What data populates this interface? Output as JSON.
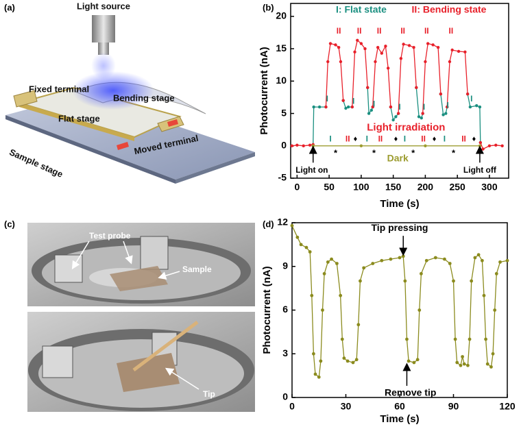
{
  "panel_labels": [
    "(a)",
    "(b)",
    "(c)",
    "(d)"
  ],
  "schematic": {
    "labels": [
      "Light source",
      "Fixed terminal",
      "Bending stage",
      "Flat stage",
      "Sample stage",
      "Moved terminal"
    ]
  },
  "photos": {
    "labels": [
      "Test probe",
      "Sample",
      "Tip"
    ]
  },
  "chart_data": [
    {
      "type": "line",
      "x_label": "Time (s)",
      "y_label": "Photocurrent (nA)",
      "xlim": [
        -10,
        330
      ],
      "xticks": [
        0,
        50,
        100,
        150,
        200,
        250,
        300
      ],
      "ylim": [
        -5,
        22
      ],
      "yticks": [
        -5,
        0,
        5,
        10,
        15,
        20
      ],
      "series": [
        {
          "name": "I: Flat state",
          "color": "#1a8f80",
          "x": [
            25,
            26,
            35,
            45,
            58,
            72,
            76,
            80,
            86,
            98,
            110,
            112,
            116,
            118,
            132,
            146,
            150,
            154,
            158,
            172,
            186,
            190,
            194,
            196,
            210,
            224,
            228,
            232,
            234,
            250,
            266,
            270,
            280,
            285,
            286
          ],
          "values": [
            0,
            6,
            6,
            6,
            null,
            7,
            5.8,
            6,
            6,
            null,
            9,
            5,
            5.5,
            6,
            null,
            6,
            4,
            4.5,
            5,
            null,
            9,
            4.5,
            4.3,
            5,
            null,
            8,
            4.8,
            5,
            6,
            null,
            8,
            6,
            6.2,
            6,
            0.5
          ]
        },
        {
          "name": "II: Bending state",
          "color": "#e8202a",
          "x": [
            -8,
            0,
            10,
            20,
            25,
            35,
            45,
            48,
            52,
            60,
            65,
            68,
            72,
            79,
            86,
            90,
            94,
            100,
            106,
            110,
            114,
            118,
            122,
            126,
            132,
            138,
            142,
            146,
            152,
            158,
            162,
            166,
            175,
            182,
            186,
            191,
            196,
            200,
            204,
            212,
            220,
            224,
            229,
            234,
            238,
            242,
            252,
            262,
            266,
            276,
            286,
            290,
            300,
            310,
            320
          ],
          "values": [
            0,
            0.1,
            0,
            0.1,
            0.2,
            null,
            6,
            13,
            15.8,
            15.6,
            15.2,
            13,
            7,
            null,
            6,
            14.5,
            16.3,
            15.8,
            15,
            9,
            null,
            6,
            13,
            15.2,
            14.3,
            15.4,
            12,
            6,
            null,
            5,
            13.5,
            15.7,
            15.5,
            15.2,
            9,
            null,
            5,
            13,
            15.8,
            15.6,
            15.2,
            8,
            null,
            6,
            13,
            14.8,
            14.6,
            14.5,
            8,
            null,
            0.5,
            -0.5,
            0,
            0.1,
            0
          ]
        },
        {
          "name": "Dark",
          "color": "#9c9c30",
          "x": [
            25,
            100,
            200,
            285
          ],
          "values": [
            0,
            0,
            0,
            0
          ]
        }
      ],
      "annotations": [
        "Light irradiation",
        "Light on",
        "Light off",
        "II",
        "II",
        "II",
        "II",
        "II",
        "II",
        "I",
        "I",
        "I",
        "I",
        "I",
        "I",
        "I",
        "I",
        "II",
        "I",
        "II",
        "I",
        "II",
        "I",
        "II",
        "*",
        "*",
        "*",
        "*",
        "♦",
        "♦",
        "♦",
        "♦"
      ]
    },
    {
      "type": "line",
      "x_label": "Time (s)",
      "y_label": "Photocurrent (nA)",
      "xlim": [
        0,
        120
      ],
      "xticks": [
        0,
        30,
        60,
        90,
        120
      ],
      "ylim": [
        0,
        12
      ],
      "yticks": [
        0,
        3,
        6,
        9,
        12
      ],
      "series": [
        {
          "color": "#8b8b1e",
          "x": [
            0,
            3,
            5,
            8,
            10,
            11,
            12,
            13,
            15,
            16,
            17,
            18,
            20,
            22,
            25,
            27,
            28,
            29,
            31,
            34,
            36,
            37,
            38,
            40,
            45,
            50,
            55,
            60,
            62,
            63,
            64,
            65,
            68,
            70,
            71,
            72,
            75,
            80,
            85,
            88,
            90,
            91,
            92,
            94,
            95,
            96,
            98,
            99,
            100,
            102,
            104,
            106,
            107,
            108,
            109,
            111,
            112,
            113,
            114,
            116,
            120
          ],
          "values": [
            11.8,
            11,
            10.5,
            10.3,
            10,
            7,
            3,
            1.6,
            1.4,
            2.5,
            6,
            8.5,
            9.3,
            9.5,
            9.2,
            7,
            4,
            2.7,
            2.5,
            2.4,
            2.6,
            5,
            8,
            8.9,
            9.2,
            9.4,
            9.5,
            9.6,
            9.7,
            8,
            4,
            2.5,
            2.4,
            2.6,
            6,
            8.5,
            9.4,
            9.6,
            9.5,
            9.2,
            8,
            4,
            2.4,
            2.2,
            2.8,
            2.3,
            2.2,
            4,
            8,
            9.6,
            9.8,
            9.4,
            7,
            4,
            2.3,
            2.1,
            3,
            6,
            8.5,
            9.3,
            9.4
          ]
        }
      ],
      "annotations": [
        "Tip pressing",
        "Remove tip"
      ]
    }
  ]
}
